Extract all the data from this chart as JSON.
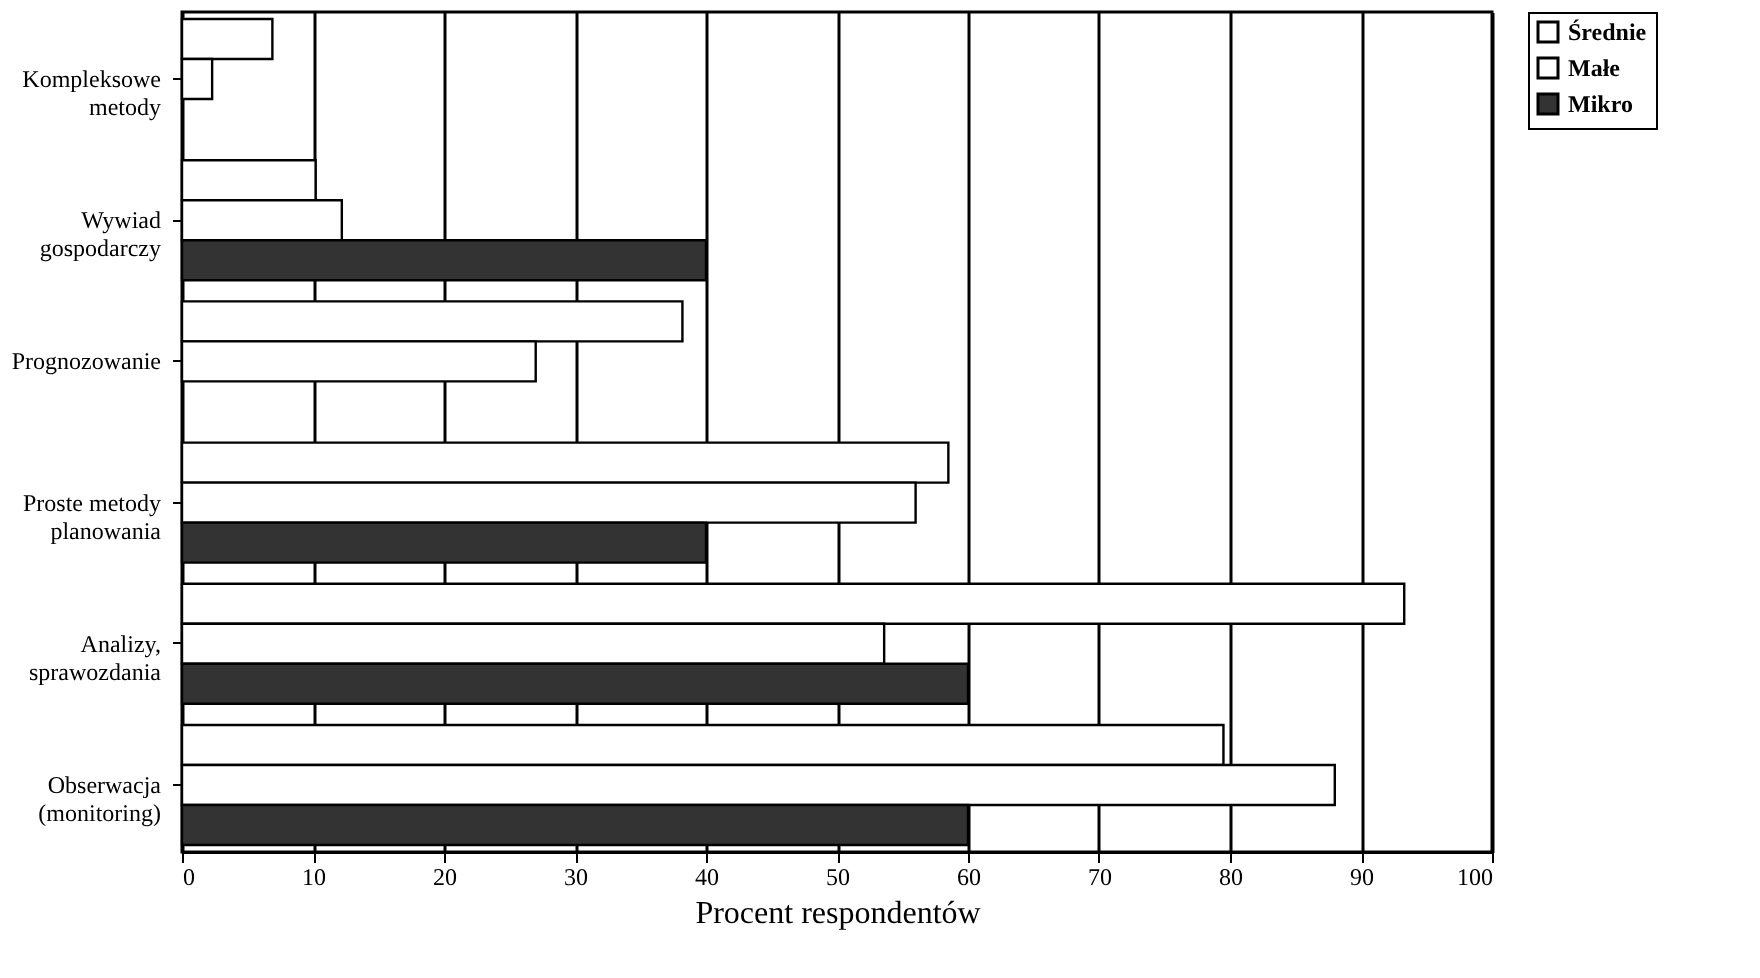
{
  "chart_data": {
    "type": "bar",
    "orientation": "horizontal",
    "xlabel": "Procent respondentów",
    "categories": [
      "Kompleksowe\nmetody",
      "Wywiad\ngospodarczy",
      "Prognozowanie",
      "Proste metody\nplanowania",
      "Analizy,\nsprawozdania",
      "Obserwacja\n(monitoring)"
    ],
    "series": [
      {
        "name": "Średnie",
        "color": "#ffffff",
        "values": [
          6.9,
          10.2,
          38.2,
          58.5,
          93.3,
          79.5
        ]
      },
      {
        "name": "Małe",
        "color": "#ffffff",
        "values": [
          2.3,
          12.2,
          27,
          56,
          53.6,
          88
        ]
      },
      {
        "name": "Mikro",
        "color": "#333333",
        "values": [
          null,
          40,
          null,
          40,
          60,
          60
        ]
      }
    ],
    "xlim": [
      0,
      100
    ],
    "xticks": [
      0,
      10,
      20,
      30,
      40,
      50,
      60,
      70,
      80,
      90,
      100
    ],
    "grid": "x",
    "legend": "right"
  }
}
